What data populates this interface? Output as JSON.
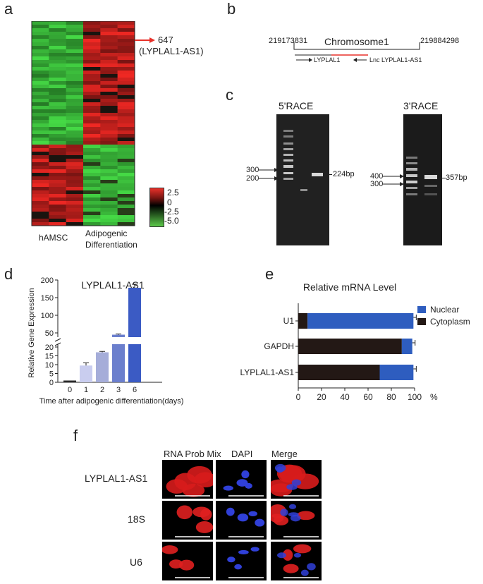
{
  "panels": {
    "a": "a",
    "b": "b",
    "c": "c",
    "d": "d",
    "e": "e",
    "f": "f"
  },
  "heatmap": {
    "col_label_left": "hAMSC",
    "col_label_right_1": "Adipogenic",
    "col_label_right_2": "Differentiation",
    "callout_num": "647",
    "callout_name": "(LYPLAL1-AS1)",
    "scale_ticks": [
      "2.5",
      "0",
      "-2.5",
      "-5.0"
    ],
    "colors": {
      "high": "#e8312a",
      "mid": "#000000",
      "low": "#5cc94a",
      "callout": "#e8312a"
    }
  },
  "chromosome": {
    "title": "Chromosome1",
    "start": "219173831",
    "end": "219884298",
    "gene1": "LYPLAL1",
    "gene2": "Lnc LYPLAL1-AS1"
  },
  "race": {
    "left_title": "5'RACE",
    "right_title": "3'RACE",
    "left_markers": [
      "300",
      "200"
    ],
    "left_band": "224bp",
    "right_markers": [
      "400",
      "300"
    ],
    "right_band": "357bp"
  },
  "chart_data": [
    {
      "type": "bar",
      "title": "LYPLAL1-AS1",
      "xlabel": "Time after adipogenic differentiation(days)",
      "ylabel": "Relative Gene Expression",
      "categories": [
        "0",
        "1",
        "2",
        "3",
        "6"
      ],
      "values": [
        1,
        9.5,
        17,
        45,
        178
      ],
      "errors": [
        0,
        1.5,
        0.5,
        2,
        10
      ],
      "y_ticks_lower": [
        "0",
        "5",
        "10",
        "15",
        "20"
      ],
      "y_ticks_upper": [
        "50",
        "100",
        "150",
        "200"
      ],
      "y_break": [
        20,
        30
      ],
      "colors": [
        "#2a2a2a",
        "#c9cdef",
        "#a5add9",
        "#6b7fcd",
        "#3b5bc4"
      ]
    },
    {
      "type": "bar",
      "title": "Relative mRNA Level",
      "categories": [
        "U1",
        "GAPDH",
        "LYPLAL1-AS1"
      ],
      "series": [
        {
          "name": "Cytoplasm",
          "values": [
            8,
            89,
            70
          ],
          "color": "#231815"
        },
        {
          "name": "Nuclear",
          "values": [
            91,
            9,
            29
          ],
          "color": "#2e5dbf"
        }
      ],
      "x_ticks": [
        "0",
        "20",
        "40",
        "60",
        "80",
        "100"
      ],
      "x_unit": "%",
      "xlim": [
        0,
        100
      ],
      "legend": "top-right"
    }
  ],
  "fish": {
    "col_headers": [
      "RNA Prob Mix",
      "DAPI",
      "Merge"
    ],
    "row_labels": [
      "LYPLAL1-AS1",
      "18S",
      "U6"
    ]
  }
}
